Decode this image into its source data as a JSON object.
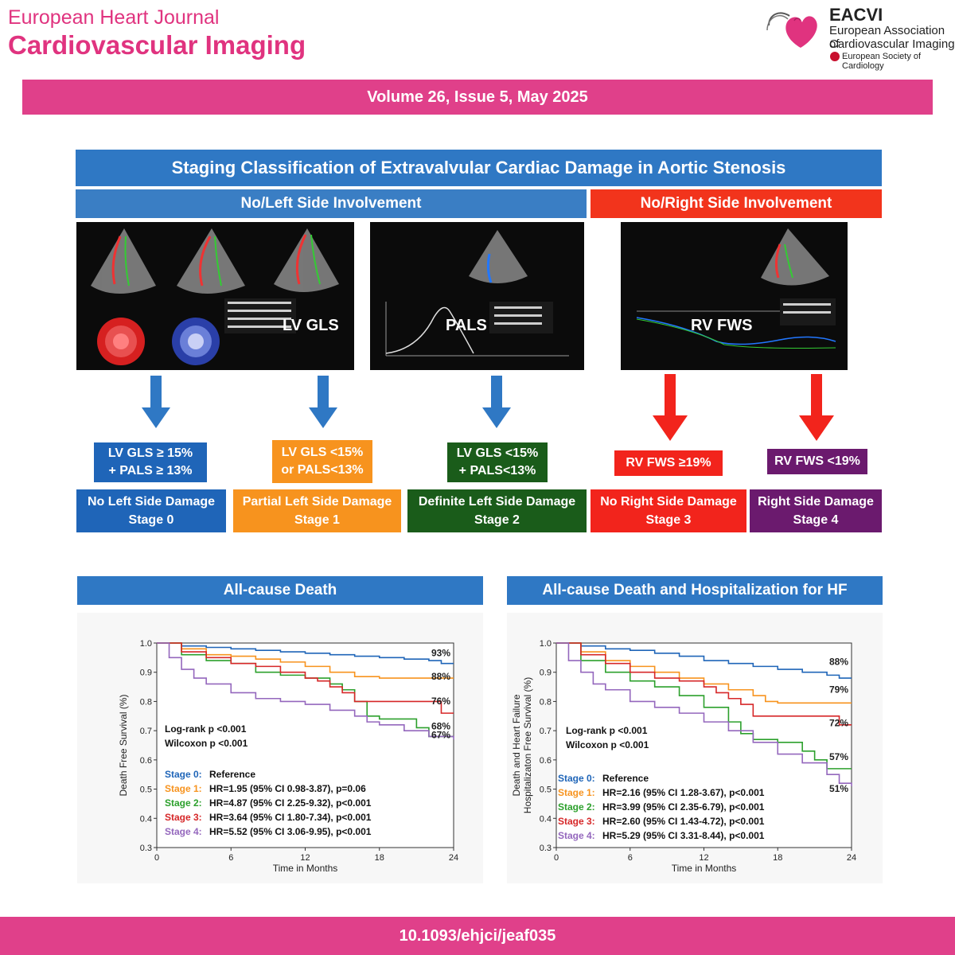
{
  "header": {
    "journal_line1": "European Heart Journal",
    "journal_line2": "Cardiovascular Imaging",
    "society_abbr": "EACVI",
    "society_line1": "European Association of",
    "society_line2": "Cardiovascular Imaging",
    "parent_society": "European Society of Cardiology",
    "brand_color": "#e0408a"
  },
  "volume": "Volume 26, Issue 5, May 2025",
  "abstract": {
    "title": "Staging Classification of Extravalvular Cardiac Damage in Aortic Stenosis",
    "left_header": "No/Left Side Involvement",
    "right_header": "No/Right Side Involvement",
    "images": {
      "lvgls_label": "LV GLS",
      "pals_label": "PALS",
      "rvfws_label": "RV FWS"
    },
    "criteria": [
      {
        "line1": "LV GLS ≥ 15%",
        "line2": "+ PALS ≥ 13%",
        "color": "#1f65b8"
      },
      {
        "line1": "LV GLS <15%",
        "line2": "or PALS<13%",
        "color": "#f7931e"
      },
      {
        "line1": "LV GLS <15%",
        "line2": "+ PALS<13%",
        "color": "#1a5c1a"
      },
      {
        "line1": "RV FWS ≥19%",
        "line2": "",
        "color": "#f2241c"
      },
      {
        "line1": "RV FWS <19%",
        "line2": "",
        "color": "#6b1a6e"
      }
    ],
    "stages": [
      {
        "name": "No Left Side Damage",
        "stage": "Stage 0",
        "color": "#1f65b8"
      },
      {
        "name": "Partial Left Side Damage",
        "stage": "Stage 1",
        "color": "#f7931e"
      },
      {
        "name": "Definite Left Side Damage",
        "stage": "Stage 2",
        "color": "#1a5c1a"
      },
      {
        "name": "No Right Side Damage",
        "stage": "Stage 3",
        "color": "#f2241c"
      },
      {
        "name": "Right Side Damage",
        "stage": "Stage 4",
        "color": "#6b1a6e"
      }
    ]
  },
  "chart_data": [
    {
      "type": "line",
      "title": "All-cause Death",
      "xlabel": "Time in Months",
      "ylabel": "Death Free Survival (%)",
      "xlim": [
        0,
        24
      ],
      "ylim": [
        0.3,
        1.0
      ],
      "xticks": [
        "0",
        "6",
        "12",
        "18",
        "24"
      ],
      "yticks": [
        "0.3",
        "0.4",
        "0.5",
        "0.6",
        "0.7",
        "0.8",
        "0.9",
        "1.0"
      ],
      "stats": [
        "Log-rank  p <0.001",
        "Wilcoxon p <0.001"
      ],
      "series": [
        {
          "name": "Stage 0:",
          "hr": "Reference",
          "color": "#1f65b8",
          "end_label": "93%",
          "x": [
            0,
            2,
            4,
            6,
            8,
            10,
            12,
            14,
            16,
            18,
            20,
            22,
            23,
            24
          ],
          "y": [
            1.0,
            0.99,
            0.985,
            0.98,
            0.975,
            0.97,
            0.965,
            0.96,
            0.955,
            0.95,
            0.945,
            0.94,
            0.93,
            0.93
          ]
        },
        {
          "name": "Stage 1:",
          "hr": "HR=1.95 (95% CI 0.98-3.87),  p=0.06",
          "color": "#f7931e",
          "end_label": "88%",
          "x": [
            0,
            2,
            4,
            6,
            8,
            10,
            12,
            14,
            16,
            18,
            20,
            22,
            24
          ],
          "y": [
            1.0,
            0.98,
            0.96,
            0.955,
            0.945,
            0.935,
            0.92,
            0.9,
            0.885,
            0.88,
            0.88,
            0.88,
            0.88
          ]
        },
        {
          "name": "Stage 2:",
          "hr": "HR=4.87 (95% CI 2.25-9.32),  p<0.001",
          "color": "#2ca02c",
          "end_label": "68%",
          "x": [
            0,
            2,
            4,
            6,
            8,
            10,
            12,
            14,
            15,
            16,
            17,
            18,
            20,
            21,
            22,
            24
          ],
          "y": [
            1.0,
            0.96,
            0.94,
            0.93,
            0.9,
            0.89,
            0.88,
            0.86,
            0.84,
            0.8,
            0.75,
            0.74,
            0.74,
            0.71,
            0.68,
            0.68
          ]
        },
        {
          "name": "Stage 3:",
          "hr": "HR=3.64 (95% CI 1.80-7.34),  p<0.001",
          "color": "#d62728",
          "end_label": "76%",
          "x": [
            0,
            2,
            4,
            6,
            8,
            10,
            12,
            13,
            14,
            15,
            16,
            18,
            20,
            22,
            23,
            24
          ],
          "y": [
            1.0,
            0.97,
            0.95,
            0.93,
            0.92,
            0.9,
            0.88,
            0.87,
            0.85,
            0.83,
            0.8,
            0.8,
            0.8,
            0.8,
            0.76,
            0.76
          ]
        },
        {
          "name": "Stage 4:",
          "hr": "HR=5.52 (95% CI 3.06-9.95),  p<0.001",
          "color": "#9467bd",
          "end_label": "67%",
          "x": [
            0,
            1,
            2,
            3,
            4,
            6,
            8,
            10,
            12,
            14,
            16,
            17,
            18,
            20,
            22,
            24
          ],
          "y": [
            1.0,
            0.95,
            0.91,
            0.88,
            0.86,
            0.83,
            0.81,
            0.8,
            0.79,
            0.77,
            0.75,
            0.73,
            0.72,
            0.7,
            0.68,
            0.67
          ]
        }
      ]
    },
    {
      "type": "line",
      "title": "All-cause Death and Hospitalization for HF",
      "xlabel": "Time in Months",
      "ylabel_line1": "Death and Heart Failure",
      "ylabel_line2": "Hospitalizaton Free Survival (%)",
      "xlim": [
        0,
        24
      ],
      "ylim": [
        0.3,
        1.0
      ],
      "xticks": [
        "0",
        "6",
        "12",
        "18",
        "24"
      ],
      "yticks": [
        "0.3",
        "0.4",
        "0.5",
        "0.6",
        "0.7",
        "0.8",
        "0.9",
        "1.0"
      ],
      "stats": [
        "Log-rank  p <0.001",
        "Wilcoxon p <0.001"
      ],
      "series": [
        {
          "name": "Stage 0:",
          "hr": "Reference",
          "color": "#1f65b8",
          "end_label": "88%",
          "x": [
            0,
            2,
            4,
            6,
            8,
            10,
            12,
            14,
            16,
            18,
            20,
            22,
            23,
            24
          ],
          "y": [
            1.0,
            0.99,
            0.98,
            0.975,
            0.965,
            0.955,
            0.94,
            0.93,
            0.92,
            0.91,
            0.9,
            0.89,
            0.88,
            0.88
          ]
        },
        {
          "name": "Stage 1:",
          "hr": "HR=2.16 (95% CI 1.28-3.67),  p<0.001",
          "color": "#f7931e",
          "end_label": "79%",
          "x": [
            0,
            2,
            4,
            6,
            8,
            10,
            12,
            14,
            16,
            17,
            18,
            20,
            22,
            24
          ],
          "y": [
            1.0,
            0.97,
            0.94,
            0.92,
            0.9,
            0.88,
            0.86,
            0.84,
            0.82,
            0.8,
            0.795,
            0.795,
            0.795,
            0.795
          ]
        },
        {
          "name": "Stage 2:",
          "hr": "HR=3.99 (95% CI 2.35-6.79),  p<0.001",
          "color": "#2ca02c",
          "end_label": "57%",
          "x": [
            0,
            2,
            4,
            6,
            8,
            10,
            12,
            14,
            15,
            16,
            18,
            20,
            21,
            22,
            24
          ],
          "y": [
            1.0,
            0.94,
            0.9,
            0.87,
            0.85,
            0.82,
            0.78,
            0.73,
            0.69,
            0.67,
            0.66,
            0.63,
            0.6,
            0.57,
            0.57
          ]
        },
        {
          "name": "Stage 3:",
          "hr": "HR=2.60 (95% CI 1.43-4.72),  p<0.001",
          "color": "#d62728",
          "end_label": "72%",
          "x": [
            0,
            2,
            4,
            6,
            8,
            10,
            12,
            13,
            14,
            15,
            16,
            18,
            20,
            22,
            23,
            24
          ],
          "y": [
            1.0,
            0.96,
            0.93,
            0.9,
            0.88,
            0.87,
            0.85,
            0.83,
            0.81,
            0.79,
            0.75,
            0.75,
            0.75,
            0.75,
            0.72,
            0.72
          ]
        },
        {
          "name": "Stage 4:",
          "hr": "HR=5.29 (95% CI 3.31-8.44),  p<0.001",
          "color": "#9467bd",
          "end_label": "51%",
          "x": [
            0,
            1,
            2,
            3,
            4,
            6,
            8,
            10,
            12,
            14,
            16,
            18,
            20,
            22,
            23,
            24
          ],
          "y": [
            1.0,
            0.94,
            0.9,
            0.86,
            0.84,
            0.8,
            0.78,
            0.76,
            0.73,
            0.7,
            0.66,
            0.62,
            0.59,
            0.55,
            0.52,
            0.51
          ]
        }
      ]
    }
  ],
  "doi": "10.1093/ehjci/jeaf035"
}
